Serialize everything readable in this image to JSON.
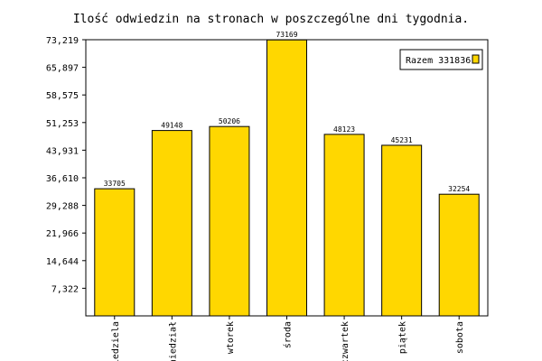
{
  "chart_data": {
    "type": "bar",
    "title": "Ilość odwiedzin na stronach w poszczególne dni tygodnia.",
    "xlabel": "",
    "ylabel": "",
    "categories": [
      "niedziela",
      "niedział",
      "wtorek",
      "środa",
      "czwartek",
      "piątek",
      "sobota"
    ],
    "values": [
      33705,
      49148,
      50206,
      73169,
      48123,
      45231,
      32254
    ],
    "y_ticks": [
      "7,322",
      "14,644",
      "21,966",
      "29,288",
      "36,610",
      "43,931",
      "51,253",
      "58,575",
      "65,897",
      "73,219"
    ],
    "ylim": [
      0,
      73219
    ],
    "legend": {
      "label": "Razem 331836",
      "placement": "top-right"
    },
    "grid": false
  },
  "colors": {
    "bar_fill": "#FFD700",
    "bar_stroke": "#000000",
    "plot_border": "#000000",
    "tick_color": "#000000",
    "background": "#FFFFFF"
  }
}
